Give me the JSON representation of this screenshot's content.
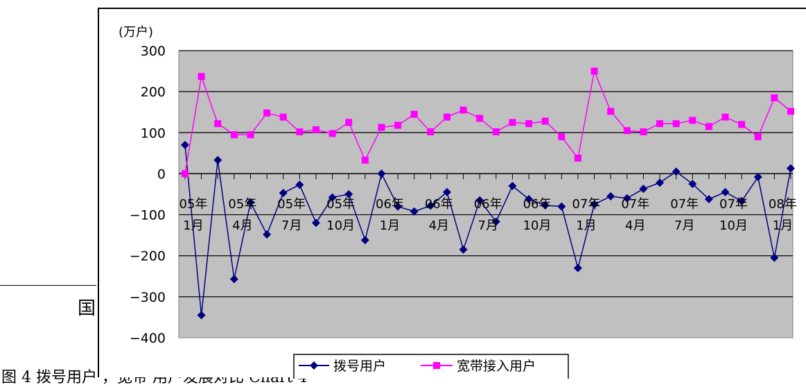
{
  "chart_data": {
    "type": "line",
    "unit_label": "(万户)",
    "ylim": [
      -400,
      300
    ],
    "yticks": [
      300,
      200,
      100,
      0,
      -100,
      -200,
      -300,
      -400
    ],
    "grid": true,
    "x_tick_labels": [
      {
        "year": "05年",
        "month": "1月",
        "index": 0
      },
      {
        "year": "05年",
        "month": "4月",
        "index": 3
      },
      {
        "year": "05年",
        "month": "7月",
        "index": 6
      },
      {
        "year": "05年",
        "month": "10月",
        "index": 9
      },
      {
        "year": "06年",
        "month": "1月",
        "index": 12
      },
      {
        "year": "06年",
        "month": "4月",
        "index": 15
      },
      {
        "year": "06年",
        "month": "7月",
        "index": 18
      },
      {
        "year": "06年",
        "month": "10月",
        "index": 21
      },
      {
        "year": "07年",
        "month": "1月",
        "index": 24
      },
      {
        "year": "07年",
        "month": "4月",
        "index": 27
      },
      {
        "year": "07年",
        "month": "7月",
        "index": 30
      },
      {
        "year": "07年",
        "month": "10月",
        "index": 33
      },
      {
        "year": "08年",
        "month": "1月",
        "index": 36
      }
    ],
    "series": [
      {
        "name": "拨号用户",
        "color": "#000080",
        "marker": "diamond",
        "values": [
          70,
          -345,
          33,
          -257,
          -70,
          -148,
          -47,
          -27,
          -120,
          -58,
          -50,
          -162,
          0,
          -80,
          -92,
          -78,
          -45,
          -185,
          -65,
          -117,
          -30,
          -62,
          -77,
          -80,
          -230,
          -75,
          -55,
          -60,
          -37,
          -22,
          5,
          -25,
          -62,
          -45,
          -67,
          -8,
          -205,
          13
        ]
      },
      {
        "name": "宽带接入用户",
        "color": "#ff00ff",
        "marker": "square",
        "values": [
          0,
          237,
          122,
          95,
          95,
          148,
          138,
          102,
          107,
          98,
          125,
          33,
          113,
          118,
          145,
          102,
          138,
          155,
          135,
          102,
          125,
          122,
          128,
          90,
          38,
          250,
          152,
          105,
          102,
          122,
          122,
          130,
          115,
          138,
          120,
          90,
          185,
          152
        ]
      }
    ],
    "legend_position": "bottom"
  },
  "background_fragments": {
    "left_glyph": "国",
    "bottom_text": "图 4  拨号用户    ，宽带 用户发展对比   Chart 4"
  }
}
